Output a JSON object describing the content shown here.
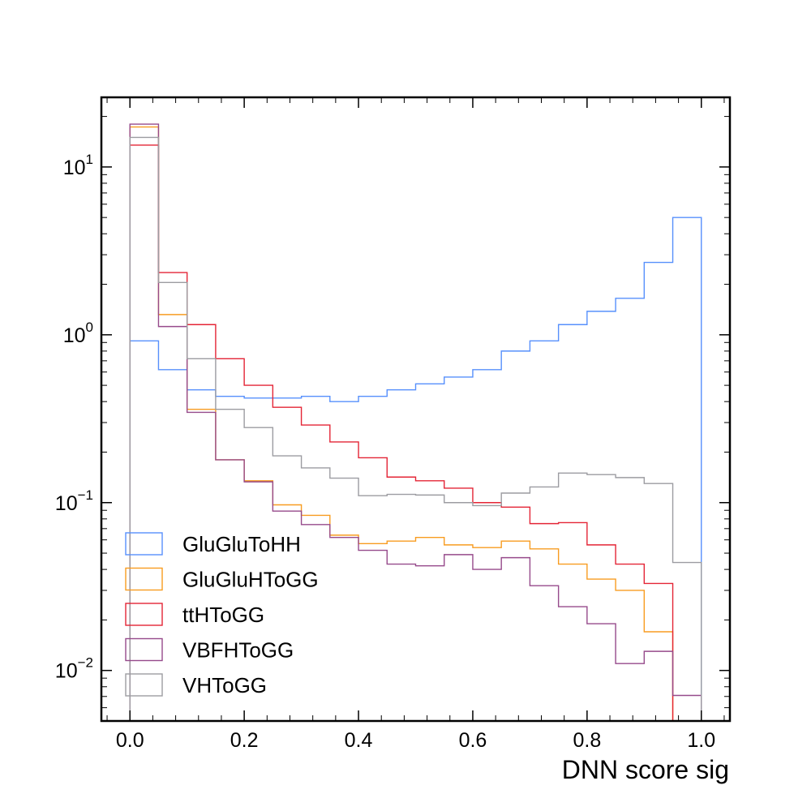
{
  "chart_data": {
    "type": "histogram",
    "xlabel": "DNN score sig",
    "ylabel": "",
    "xlim": [
      -0.05,
      1.05
    ],
    "ylim": [
      0.005,
      26
    ],
    "yscale": "log",
    "grid": false,
    "legend_position": "lower-left",
    "bin_edges": [
      0.0,
      0.05,
      0.1,
      0.15,
      0.2,
      0.25,
      0.3,
      0.35,
      0.4,
      0.45,
      0.5,
      0.55,
      0.6,
      0.65,
      0.7,
      0.75,
      0.8,
      0.85,
      0.9,
      0.95,
      1.0
    ],
    "x_ticks": [
      {
        "value": 0.0,
        "label": "0.0"
      },
      {
        "value": 0.2,
        "label": "0.2"
      },
      {
        "value": 0.4,
        "label": "0.4"
      },
      {
        "value": 0.6,
        "label": "0.6"
      },
      {
        "value": 0.8,
        "label": "0.8"
      },
      {
        "value": 1.0,
        "label": "1.0"
      }
    ],
    "y_ticks": [
      {
        "value": 0.01,
        "base": "10",
        "exponent": "−2"
      },
      {
        "value": 0.1,
        "base": "10",
        "exponent": "−1"
      },
      {
        "value": 1,
        "base": "10",
        "exponent": "0"
      },
      {
        "value": 10,
        "base": "10",
        "exponent": "1"
      }
    ],
    "series": [
      {
        "name": "GluGluToHH",
        "color": "#5790fc",
        "values": [
          0.92,
          0.62,
          0.47,
          0.43,
          0.42,
          0.42,
          0.43,
          0.4,
          0.43,
          0.47,
          0.51,
          0.56,
          0.62,
          0.8,
          0.92,
          1.15,
          1.38,
          1.65,
          2.7,
          5.0
        ]
      },
      {
        "name": "GluGluHToGG",
        "color": "#f89c20",
        "values": [
          17.3,
          1.32,
          0.36,
          0.18,
          0.135,
          0.097,
          0.084,
          0.064,
          0.057,
          0.059,
          0.062,
          0.056,
          0.054,
          0.059,
          0.053,
          0.043,
          0.035,
          0.03,
          0.017,
          0.0
        ]
      },
      {
        "name": "ttHToGG",
        "color": "#e42536",
        "values": [
          13.5,
          2.35,
          1.15,
          0.72,
          0.5,
          0.37,
          0.29,
          0.23,
          0.185,
          0.142,
          0.135,
          0.122,
          0.1,
          0.094,
          0.075,
          0.076,
          0.056,
          0.043,
          0.033,
          0.0
        ]
      },
      {
        "name": "VBFHToGG",
        "color": "#964a8b",
        "values": [
          18.0,
          1.12,
          0.345,
          0.18,
          0.133,
          0.089,
          0.074,
          0.062,
          0.052,
          0.043,
          0.042,
          0.049,
          0.04,
          0.047,
          0.032,
          0.024,
          0.019,
          0.011,
          0.013,
          0.0071
        ]
      },
      {
        "name": "VHToGG",
        "color": "#9c9ca1",
        "values": [
          15.0,
          2.05,
          0.72,
          0.36,
          0.28,
          0.19,
          0.161,
          0.14,
          0.11,
          0.112,
          0.111,
          0.1,
          0.096,
          0.114,
          0.124,
          0.15,
          0.147,
          0.141,
          0.13,
          0.044
        ]
      }
    ]
  }
}
